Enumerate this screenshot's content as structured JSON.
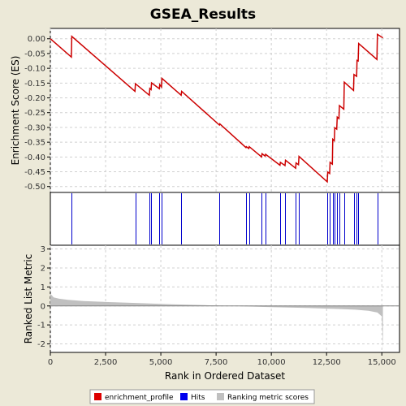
{
  "chart_data": [
    {
      "type": "line",
      "panel": "enrichment",
      "title": "GSEA_Results",
      "ylabel": "Enrichment Score (ES)",
      "xlim": [
        0,
        15800
      ],
      "ylim": [
        -0.52,
        0.035
      ],
      "yticks": [
        0.0,
        -0.05,
        -0.1,
        -0.15,
        -0.2,
        -0.25,
        -0.3,
        -0.35,
        -0.4,
        -0.45,
        -0.5
      ],
      "ytick_labels": [
        "0.00",
        "-0.05",
        "-0.10",
        "-0.15",
        "-0.20",
        "-0.25",
        "-0.30",
        "-0.35",
        "-0.40",
        "-0.45",
        "-0.50"
      ],
      "grid": true,
      "color": "#CC0000",
      "series": [
        {
          "name": "enrichment_profile",
          "x": [
            0,
            950,
            970,
            3830,
            3850,
            4480,
            4500,
            4560,
            4580,
            4930,
            4950,
            5030,
            5050,
            5920,
            5940,
            7650,
            7670,
            8850,
            8870,
            8980,
            9000,
            9560,
            9580,
            9720,
            9740,
            10390,
            10410,
            10620,
            10640,
            11100,
            11120,
            11230,
            11250,
            12530,
            12550,
            12640,
            12660,
            12760,
            12780,
            12850,
            12870,
            12960,
            12980,
            13060,
            13080,
            13280,
            13300,
            13720,
            13740,
            13860,
            13880,
            13930,
            13950,
            14780,
            14800,
            15050
          ],
          "y": [
            0.0,
            -0.062,
            0.008,
            -0.178,
            -0.152,
            -0.191,
            -0.168,
            -0.172,
            -0.149,
            -0.169,
            -0.155,
            -0.163,
            -0.134,
            -0.191,
            -0.178,
            -0.292,
            -0.288,
            -0.368,
            -0.365,
            -0.371,
            -0.365,
            -0.4,
            -0.389,
            -0.397,
            -0.391,
            -0.428,
            -0.418,
            -0.429,
            -0.411,
            -0.438,
            -0.42,
            -0.426,
            -0.398,
            -0.484,
            -0.451,
            -0.456,
            -0.418,
            -0.424,
            -0.34,
            -0.345,
            -0.301,
            -0.306,
            -0.265,
            -0.27,
            -0.226,
            -0.238,
            -0.147,
            -0.175,
            -0.121,
            -0.127,
            -0.073,
            -0.075,
            -0.016,
            -0.07,
            0.015,
            0.003
          ]
        }
      ]
    },
    {
      "type": "scatter",
      "panel": "hits",
      "color": "#0000CC",
      "series": [
        {
          "name": "Hits",
          "x": [
            960,
            3840,
            4490,
            4570,
            4940,
            5040,
            5930,
            7660,
            8860,
            8990,
            9570,
            9730,
            10400,
            10630,
            11110,
            11240,
            12540,
            12650,
            12770,
            12860,
            12970,
            13070,
            13290,
            13730,
            13870,
            13940,
            14790
          ]
        }
      ]
    },
    {
      "type": "area",
      "panel": "ranking",
      "xlabel": "Rank in Ordered Dataset",
      "ylabel": "Ranked List Metric",
      "xlim": [
        0,
        15800
      ],
      "ylim": [
        -2.45,
        3.2
      ],
      "yticks": [
        3,
        2,
        1,
        0,
        -1,
        -2
      ],
      "ytick_labels": [
        "3",
        "2",
        "1",
        "0",
        "-1",
        "-2"
      ],
      "xticks": [
        0,
        2500,
        5000,
        7500,
        10000,
        12500,
        15000
      ],
      "xtick_labels": [
        "0",
        "2,500",
        "5,000",
        "7,500",
        "10,000",
        "12,500",
        "15,000"
      ],
      "grid": true,
      "color": "#C0C0C0",
      "series": [
        {
          "name": "Ranking metric scores",
          "x": [
            0,
            150,
            400,
            800,
            1500,
            2500,
            4000,
            5500,
            7000,
            8200,
            9000,
            10000,
            11000,
            12000,
            13000,
            13800,
            14400,
            14800,
            15000,
            15050
          ],
          "y": [
            0.65,
            0.45,
            0.38,
            0.32,
            0.26,
            0.21,
            0.15,
            0.09,
            0.04,
            0.0,
            -0.03,
            -0.06,
            -0.09,
            -0.12,
            -0.16,
            -0.2,
            -0.26,
            -0.35,
            -0.55,
            -2.3
          ]
        }
      ]
    }
  ],
  "legend": {
    "items": [
      {
        "label": "enrichment_profile",
        "color": "#DD0000"
      },
      {
        "label": "Hits",
        "color": "#0000EE"
      },
      {
        "label": "Ranking metric scores",
        "color": "#C0C0C0"
      }
    ]
  }
}
